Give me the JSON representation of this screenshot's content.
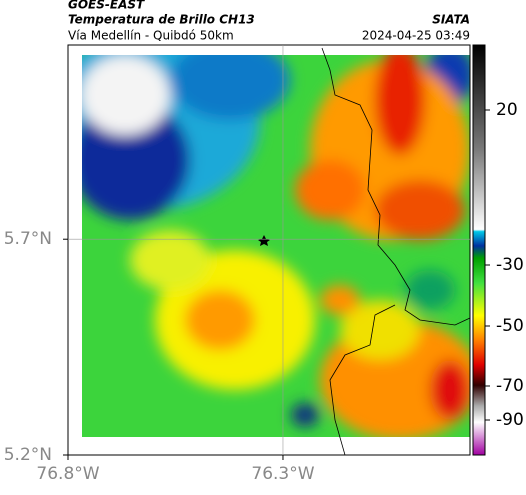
{
  "header": {
    "source": "GOES-EAST",
    "product": "Temperatura de Brillo CH13",
    "org": "SIATA",
    "route": "Vía Medellín - Quibdó 50km",
    "datetime": "2024-04-25 03:49"
  },
  "map": {
    "xlim": [
      -76.8,
      -75.865
    ],
    "ylim": [
      5.2,
      6.15
    ],
    "xticks": [
      {
        "value": -76.8,
        "label": "76.8°W"
      },
      {
        "value": -76.3,
        "label": "76.3°W"
      }
    ],
    "yticks": [
      {
        "value": 5.2,
        "label": "5.2°N"
      },
      {
        "value": 5.7,
        "label": "5.7°N"
      }
    ],
    "grid": true
  },
  "colorbar": {
    "ticks": [
      20,
      -30,
      -50,
      -70,
      -90
    ]
  }
}
